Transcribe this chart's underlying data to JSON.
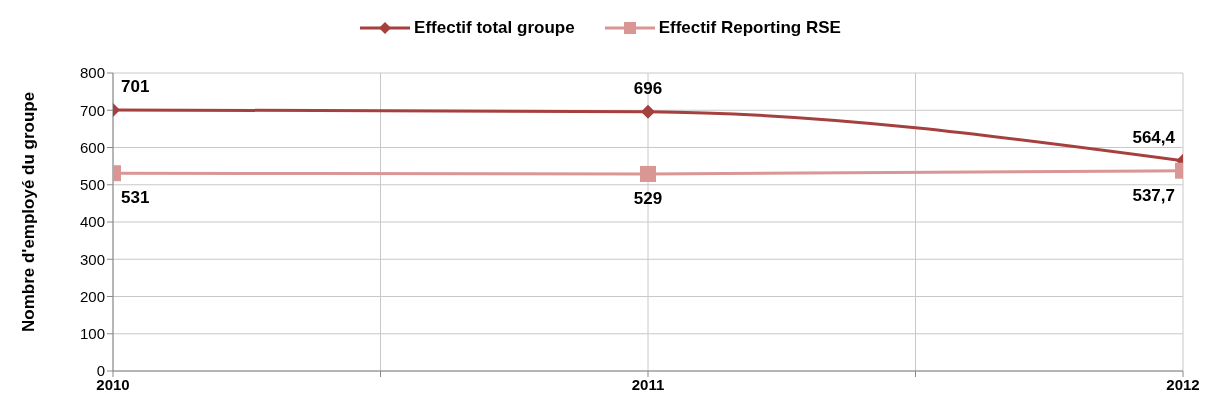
{
  "chart_data": {
    "type": "line",
    "x": [
      2010,
      2011,
      2012
    ],
    "ylabel": "Nombre d'employé du groupe",
    "series": [
      {
        "name": "Effectif total groupe",
        "color": "#a5403e",
        "values": [
          701,
          696,
          564.4
        ],
        "marker": "diamond",
        "value_labels": [
          "701",
          "696",
          "564,4"
        ]
      },
      {
        "name": "Effectif Reporting RSE",
        "color": "#d99694",
        "values": [
          531,
          529,
          537.7
        ],
        "marker": "square",
        "value_labels": [
          "531",
          "529",
          "537,7"
        ]
      }
    ],
    "xlim": [
      2010,
      2012
    ],
    "xticks": [
      2010,
      {
        "value": 2010.5,
        "label": null
      },
      2011,
      {
        "value": 2011.5,
        "label": null
      },
      2012
    ],
    "ylim": [
      0,
      800
    ],
    "yticks": [
      0,
      100,
      200,
      300,
      400,
      500,
      600,
      700,
      800
    ],
    "grid": true,
    "legend": "top",
    "line_style": "solid"
  }
}
